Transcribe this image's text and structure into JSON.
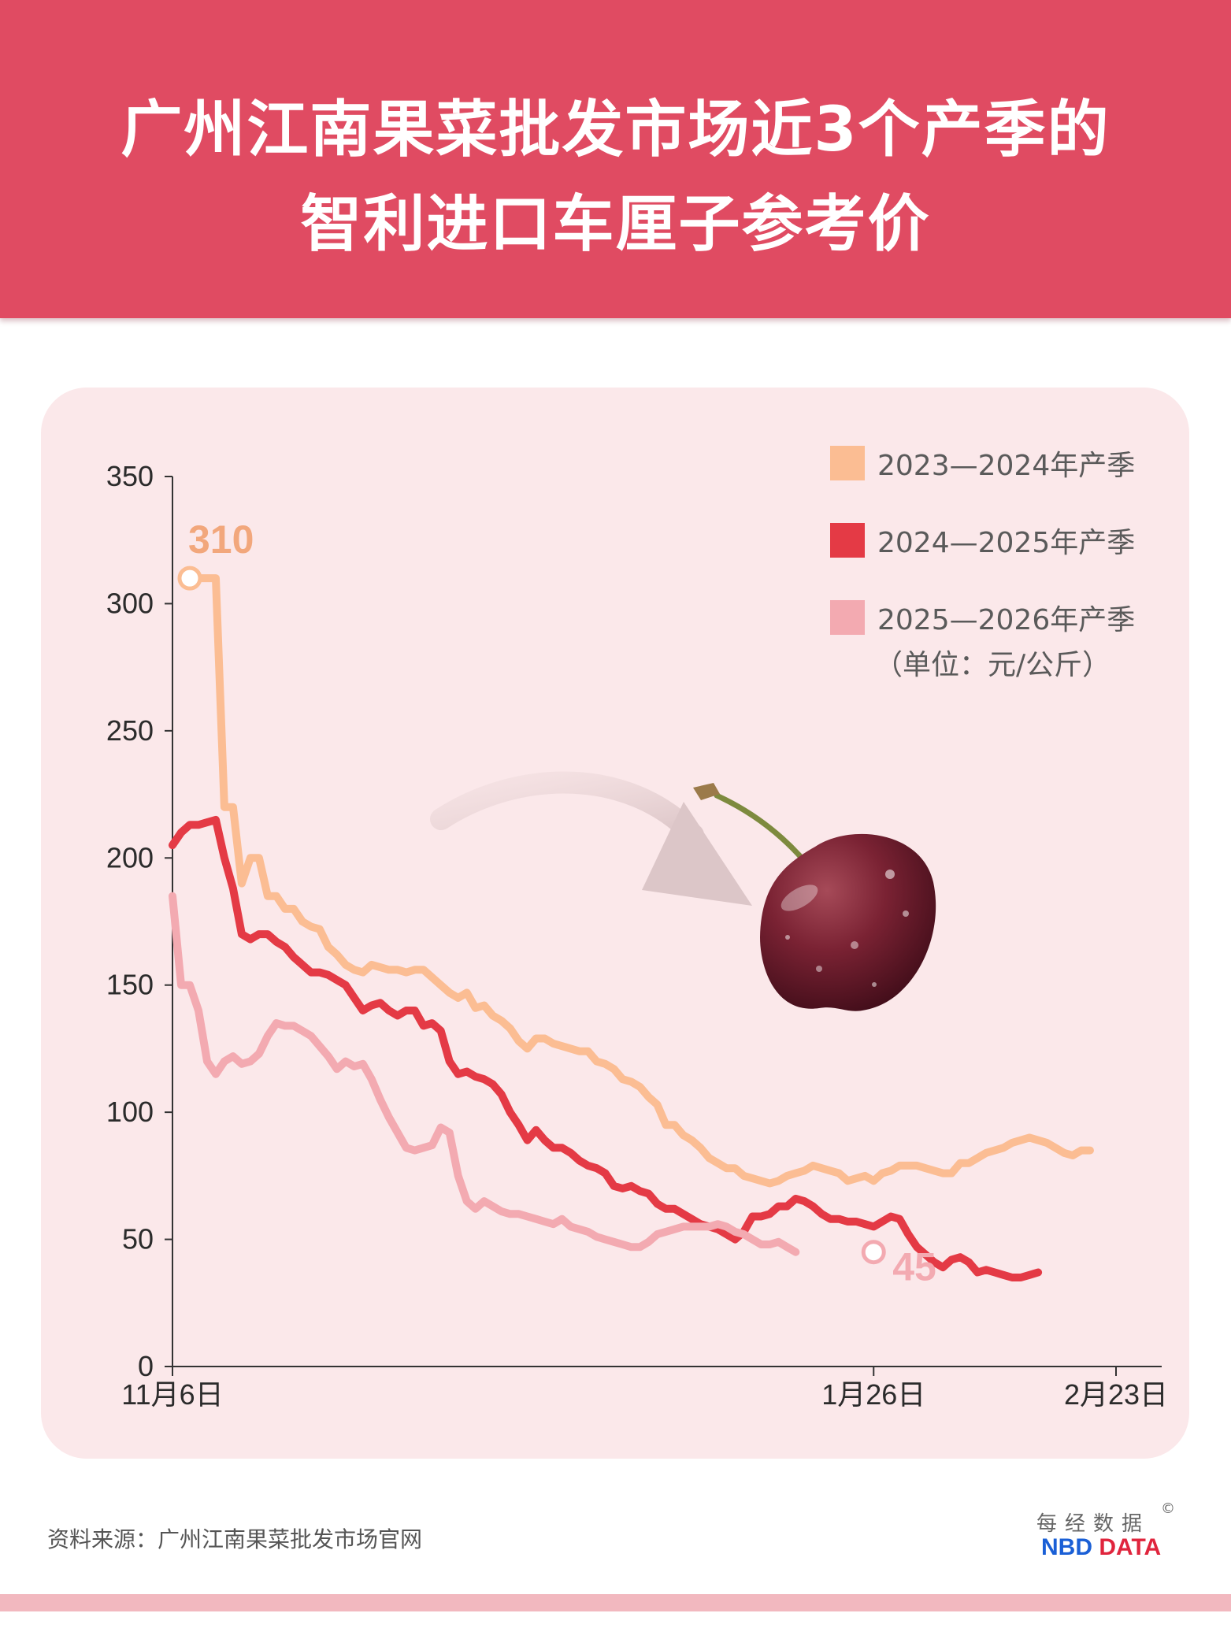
{
  "title": {
    "line1": "广州江南果菜批发市场近3个产季的",
    "line2": "智利进口车厘子参考价"
  },
  "source": "资料来源：广州江南果菜批发市场官网",
  "brand": {
    "cn": "每经数据",
    "copyright": "©",
    "en_nbd": "NBD",
    "en_data": "DATA"
  },
  "unit_note": "（单位：元/公斤）",
  "chart_data": {
    "type": "line",
    "title": "广州江南果菜批发市场近3个产季的智利进口车厘子参考价",
    "ylabel": "元/公斤",
    "ylim": [
      0,
      350
    ],
    "yticks": [
      0,
      50,
      100,
      150,
      200,
      250,
      300,
      350
    ],
    "xlim": [
      0,
      109
    ],
    "xtick_labels": [
      {
        "x": 0,
        "label": "11月6日"
      },
      {
        "x": 81,
        "label": "1月26日"
      },
      {
        "x": 109,
        "label": "2月23日"
      }
    ],
    "legend_position": "top-right",
    "annotations": [
      {
        "series": 0,
        "x": 2,
        "y": 310,
        "text": "310"
      },
      {
        "series": 2,
        "x": 81,
        "y": 45,
        "text": "45"
      }
    ],
    "series": [
      {
        "name": "2023—2024年产季",
        "color": "#fbbd93",
        "points": [
          [
            2,
            310
          ],
          [
            3,
            310
          ],
          [
            4,
            310
          ],
          [
            5,
            310
          ],
          [
            6,
            220
          ],
          [
            7,
            220
          ],
          [
            8,
            190
          ],
          [
            9,
            200
          ],
          [
            10,
            200
          ],
          [
            11,
            185
          ],
          [
            12,
            185
          ],
          [
            13,
            180
          ],
          [
            14,
            180
          ],
          [
            15,
            175
          ],
          [
            16,
            173
          ],
          [
            17,
            172
          ],
          [
            18,
            165
          ],
          [
            19,
            162
          ],
          [
            20,
            158
          ],
          [
            21,
            156
          ],
          [
            22,
            155
          ],
          [
            23,
            158
          ],
          [
            24,
            157
          ],
          [
            25,
            156
          ],
          [
            26,
            156
          ],
          [
            27,
            155
          ],
          [
            28,
            156
          ],
          [
            29,
            156
          ],
          [
            30,
            153
          ],
          [
            31,
            150
          ],
          [
            32,
            147
          ],
          [
            33,
            145
          ],
          [
            34,
            147
          ],
          [
            35,
            141
          ],
          [
            36,
            142
          ],
          [
            37,
            138
          ],
          [
            38,
            136
          ],
          [
            39,
            133
          ],
          [
            40,
            128
          ],
          [
            41,
            125
          ],
          [
            42,
            129
          ],
          [
            43,
            129
          ],
          [
            44,
            127
          ],
          [
            45,
            126
          ],
          [
            46,
            125
          ],
          [
            47,
            124
          ],
          [
            48,
            124
          ],
          [
            49,
            120
          ],
          [
            50,
            119
          ],
          [
            51,
            117
          ],
          [
            52,
            113
          ],
          [
            53,
            112
          ],
          [
            54,
            110
          ],
          [
            55,
            106
          ],
          [
            56,
            103
          ],
          [
            57,
            95
          ],
          [
            58,
            95
          ],
          [
            59,
            91
          ],
          [
            60,
            89
          ],
          [
            61,
            86
          ],
          [
            62,
            82
          ],
          [
            63,
            80
          ],
          [
            64,
            78
          ],
          [
            65,
            78
          ],
          [
            66,
            75
          ],
          [
            67,
            74
          ],
          [
            68,
            73
          ],
          [
            69,
            72
          ],
          [
            70,
            73
          ],
          [
            71,
            75
          ],
          [
            72,
            76
          ],
          [
            73,
            77
          ],
          [
            74,
            79
          ],
          [
            75,
            78
          ],
          [
            76,
            77
          ],
          [
            77,
            76
          ],
          [
            78,
            73
          ],
          [
            79,
            74
          ],
          [
            80,
            75
          ],
          [
            81,
            73
          ],
          [
            82,
            76
          ],
          [
            83,
            77
          ],
          [
            84,
            79
          ],
          [
            85,
            79
          ],
          [
            86,
            79
          ],
          [
            87,
            78
          ],
          [
            88,
            77
          ],
          [
            89,
            76
          ],
          [
            90,
            76
          ],
          [
            91,
            80
          ],
          [
            92,
            80
          ],
          [
            93,
            82
          ],
          [
            94,
            84
          ],
          [
            95,
            85
          ],
          [
            96,
            86
          ],
          [
            97,
            88
          ],
          [
            98,
            89
          ],
          [
            99,
            90
          ],
          [
            100,
            89
          ],
          [
            101,
            88
          ],
          [
            102,
            86
          ],
          [
            103,
            84
          ],
          [
            104,
            83
          ],
          [
            105,
            85
          ],
          [
            106,
            85
          ]
        ]
      },
      {
        "name": "2024—2025年产季",
        "color": "#e43a45",
        "points": [
          [
            0,
            205
          ],
          [
            1,
            210
          ],
          [
            2,
            213
          ],
          [
            3,
            213
          ],
          [
            4,
            214
          ],
          [
            5,
            215
          ],
          [
            6,
            200
          ],
          [
            7,
            188
          ],
          [
            8,
            170
          ],
          [
            9,
            168
          ],
          [
            10,
            170
          ],
          [
            11,
            170
          ],
          [
            12,
            167
          ],
          [
            13,
            165
          ],
          [
            14,
            161
          ],
          [
            15,
            158
          ],
          [
            16,
            155
          ],
          [
            17,
            155
          ],
          [
            18,
            154
          ],
          [
            19,
            152
          ],
          [
            20,
            150
          ],
          [
            21,
            145
          ],
          [
            22,
            140
          ],
          [
            23,
            142
          ],
          [
            24,
            143
          ],
          [
            25,
            140
          ],
          [
            26,
            138
          ],
          [
            27,
            140
          ],
          [
            28,
            140
          ],
          [
            29,
            134
          ],
          [
            30,
            135
          ],
          [
            31,
            132
          ],
          [
            32,
            120
          ],
          [
            33,
            115
          ],
          [
            34,
            116
          ],
          [
            35,
            114
          ],
          [
            36,
            113
          ],
          [
            37,
            111
          ],
          [
            38,
            107
          ],
          [
            39,
            100
          ],
          [
            40,
            95
          ],
          [
            41,
            89
          ],
          [
            42,
            93
          ],
          [
            43,
            89
          ],
          [
            44,
            86
          ],
          [
            45,
            86
          ],
          [
            46,
            84
          ],
          [
            47,
            81
          ],
          [
            48,
            79
          ],
          [
            49,
            78
          ],
          [
            50,
            76
          ],
          [
            51,
            71
          ],
          [
            52,
            70
          ],
          [
            53,
            71
          ],
          [
            54,
            69
          ],
          [
            55,
            68
          ],
          [
            56,
            64
          ],
          [
            57,
            62
          ],
          [
            58,
            62
          ],
          [
            59,
            60
          ],
          [
            60,
            58
          ],
          [
            61,
            56
          ],
          [
            62,
            55
          ],
          [
            63,
            54
          ],
          [
            64,
            52
          ],
          [
            65,
            50
          ],
          [
            66,
            53
          ],
          [
            67,
            59
          ],
          [
            68,
            59
          ],
          [
            69,
            60
          ],
          [
            70,
            63
          ],
          [
            71,
            63
          ],
          [
            72,
            66
          ],
          [
            73,
            65
          ],
          [
            74,
            63
          ],
          [
            75,
            60
          ],
          [
            76,
            58
          ],
          [
            77,
            58
          ],
          [
            78,
            57
          ],
          [
            79,
            57
          ],
          [
            80,
            56
          ],
          [
            81,
            55
          ],
          [
            82,
            57
          ],
          [
            83,
            59
          ],
          [
            84,
            58
          ],
          [
            85,
            52
          ],
          [
            86,
            47
          ],
          [
            87,
            44
          ],
          [
            88,
            41
          ],
          [
            89,
            39
          ],
          [
            90,
            42
          ],
          [
            91,
            43
          ],
          [
            92,
            41
          ],
          [
            93,
            37
          ],
          [
            94,
            38
          ],
          [
            95,
            37
          ],
          [
            96,
            36
          ],
          [
            97,
            35
          ],
          [
            98,
            35
          ],
          [
            99,
            36
          ],
          [
            100,
            37
          ]
        ]
      },
      {
        "name": "2025—2026年产季",
        "color": "#f3aab1",
        "points": [
          [
            0,
            185
          ],
          [
            1,
            150
          ],
          [
            2,
            150
          ],
          [
            3,
            140
          ],
          [
            4,
            120
          ],
          [
            5,
            115
          ],
          [
            6,
            120
          ],
          [
            7,
            122
          ],
          [
            8,
            119
          ],
          [
            9,
            120
          ],
          [
            10,
            123
          ],
          [
            11,
            130
          ],
          [
            12,
            135
          ],
          [
            13,
            134
          ],
          [
            14,
            134
          ],
          [
            15,
            132
          ],
          [
            16,
            130
          ],
          [
            17,
            126
          ],
          [
            18,
            122
          ],
          [
            19,
            117
          ],
          [
            20,
            120
          ],
          [
            21,
            118
          ],
          [
            22,
            119
          ],
          [
            23,
            113
          ],
          [
            24,
            105
          ],
          [
            25,
            98
          ],
          [
            26,
            92
          ],
          [
            27,
            86
          ],
          [
            28,
            85
          ],
          [
            29,
            86
          ],
          [
            30,
            87
          ],
          [
            31,
            94
          ],
          [
            32,
            92
          ],
          [
            33,
            75
          ],
          [
            34,
            65
          ],
          [
            35,
            62
          ],
          [
            36,
            65
          ],
          [
            37,
            63
          ],
          [
            38,
            61
          ],
          [
            39,
            60
          ],
          [
            40,
            60
          ],
          [
            41,
            59
          ],
          [
            42,
            58
          ],
          [
            43,
            57
          ],
          [
            44,
            56
          ],
          [
            45,
            58
          ],
          [
            46,
            55
          ],
          [
            47,
            54
          ],
          [
            48,
            53
          ],
          [
            49,
            51
          ],
          [
            50,
            50
          ],
          [
            51,
            49
          ],
          [
            52,
            48
          ],
          [
            53,
            47
          ],
          [
            54,
            47
          ],
          [
            55,
            49
          ],
          [
            56,
            52
          ],
          [
            57,
            53
          ],
          [
            58,
            54
          ],
          [
            59,
            55
          ],
          [
            60,
            55
          ],
          [
            61,
            55
          ],
          [
            62,
            55
          ],
          [
            63,
            56
          ],
          [
            64,
            55
          ],
          [
            65,
            53
          ],
          [
            66,
            52
          ],
          [
            67,
            50
          ],
          [
            68,
            48
          ],
          [
            69,
            48
          ],
          [
            70,
            49
          ],
          [
            71,
            47
          ],
          [
            72,
            45
          ]
        ]
      }
    ]
  }
}
